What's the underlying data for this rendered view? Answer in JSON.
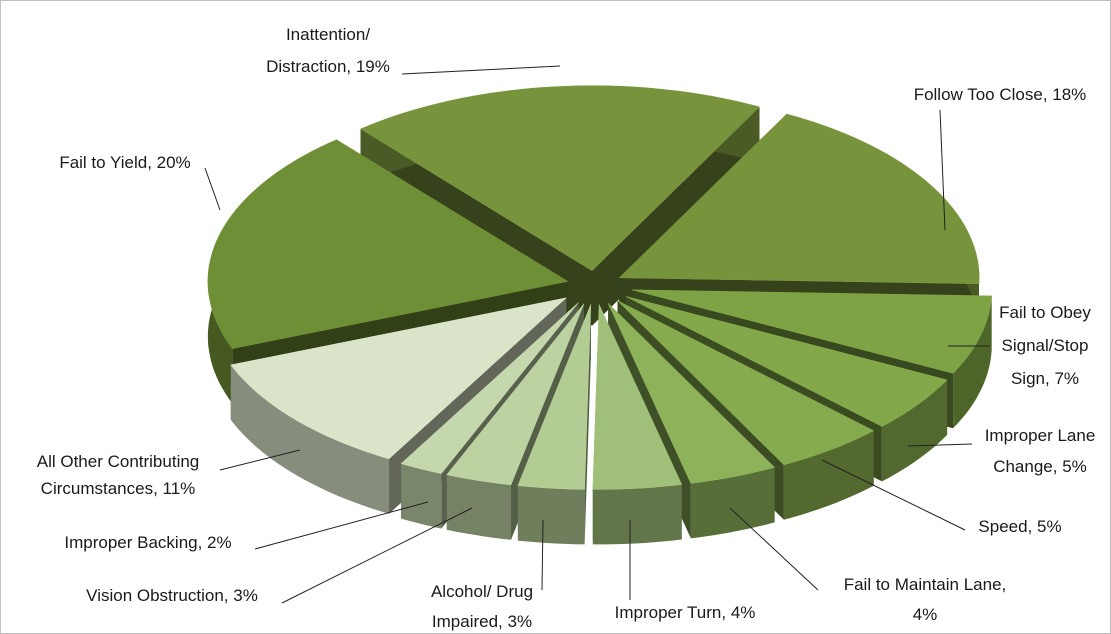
{
  "chart_data": {
    "type": "pie",
    "labels": [
      [
        "Inattention/",
        "Distraction, 19%"
      ],
      [
        "Follow Too Close, 18%"
      ],
      [
        "Fail to Obey",
        "Signal/Stop",
        "Sign, 7%"
      ],
      [
        "Improper Lane",
        "Change, 5%"
      ],
      [
        "Speed,  5%"
      ],
      [
        "Fail to Maintain Lane,",
        "4%"
      ],
      [
        "Improper Turn, 4%"
      ],
      [
        "Alcohol/ Drug",
        "Impaired, 3%"
      ],
      [
        "Vision Obstruction, 3%"
      ],
      [
        "Improper Backing, 2%"
      ],
      [
        "All Other Contributing",
        "Circumstances, 11%"
      ],
      [
        "Fail to Yield, 20%"
      ]
    ],
    "values": [
      19,
      18,
      7,
      5,
      5,
      4,
      4,
      3,
      3,
      2,
      11,
      20
    ],
    "colors": [
      "#77933c",
      "#77933c",
      "#7ea344",
      "#82a84a",
      "#86aa4e",
      "#8db25a",
      "#a0bf78",
      "#b3cc93",
      "#bcd2a0",
      "#c5d8ad",
      "#d9e4c8",
      "#6f8f36"
    ]
  }
}
